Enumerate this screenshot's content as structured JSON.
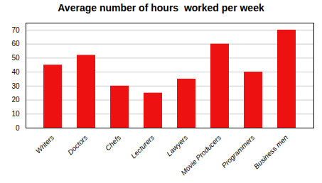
{
  "chart_data": {
    "type": "bar",
    "title": "Average number of hours  worked per week",
    "categories": [
      "Writers",
      "Doctors",
      "Chefs",
      "Lecturers",
      "Lawyers",
      "Movie Producers",
      "Programmers",
      "Business men"
    ],
    "values": [
      45,
      52,
      30,
      25,
      35,
      60,
      40,
      70
    ],
    "color": "#ee1111",
    "ylim": [
      0,
      75
    ],
    "yticks": [
      0,
      10,
      20,
      30,
      40,
      50,
      60,
      70
    ],
    "grid": true
  }
}
